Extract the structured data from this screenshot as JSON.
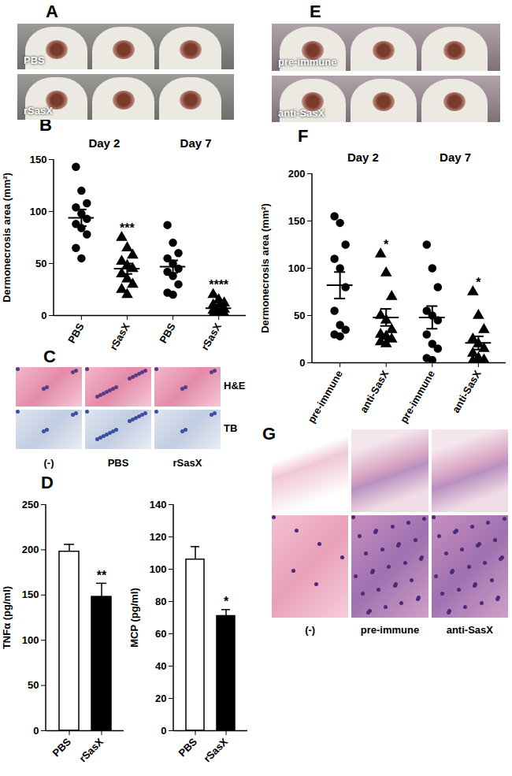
{
  "chart_data": [
    {
      "type": "scatter",
      "panel": "B",
      "ylabel": "Dermonecrosis area (mm²)",
      "ylim": [
        0,
        150
      ],
      "yticks": [
        0,
        50,
        100,
        150
      ],
      "groups": [
        "Day 2",
        "Day 7"
      ],
      "series": [
        {
          "name": "PBS",
          "marker": "circle",
          "color": "#000000",
          "values": [
            [
              143,
              120,
              108,
              104,
              98,
              93,
              88,
              84,
              78,
              65,
              55
            ],
            [
              87,
              70,
              60,
              55,
              50,
              45,
              42,
              38,
              30,
              22,
              20
            ]
          ],
          "mean": [
            94,
            47
          ],
          "sem": [
            8,
            6
          ],
          "significance": [
            null,
            null
          ]
        },
        {
          "name": "rSasX",
          "marker": "triangle",
          "color": "#000000",
          "values": [
            [
              75,
              65,
              58,
              52,
              48,
              45,
              40,
              35,
              30,
              25,
              20
            ],
            [
              20,
              15,
              12,
              10,
              8,
              6,
              5,
              3,
              2,
              1,
              0
            ]
          ],
          "mean": [
            45,
            7
          ],
          "sem": [
            5,
            2
          ],
          "significance": [
            "***",
            "****"
          ]
        }
      ]
    },
    {
      "type": "bar",
      "panel": "D",
      "ylabel": "TNFα (pg/ml)",
      "categories": [
        "PBS",
        "rSasX"
      ],
      "values": [
        198,
        148
      ],
      "errors": [
        8,
        15
      ],
      "colors": [
        "#ffffff",
        "#000000"
      ],
      "significance": [
        null,
        "**"
      ],
      "ylim": [
        0,
        250
      ],
      "yticks": [
        0,
        50,
        100,
        150,
        200,
        250
      ]
    },
    {
      "type": "bar",
      "ylabel": "MCP (pg/ml)",
      "categories": [
        "PBS",
        "rSasX"
      ],
      "values": [
        106,
        71
      ],
      "errors": [
        8,
        4
      ],
      "colors": [
        "#ffffff",
        "#000000"
      ],
      "significance": [
        null,
        "*"
      ],
      "ylim": [
        0,
        140
      ],
      "yticks": [
        0,
        20,
        40,
        60,
        80,
        100,
        120,
        140
      ]
    },
    {
      "type": "scatter",
      "panel": "F",
      "ylabel": "Dermonecrosis area (mm²)",
      "ylim": [
        0,
        200
      ],
      "yticks": [
        0,
        50,
        100,
        150,
        200
      ],
      "groups": [
        "Day 2",
        "Day 7"
      ],
      "series": [
        {
          "name": "pre-immune",
          "marker": "circle",
          "color": "#000000",
          "values": [
            [
              155,
              148,
              125,
              110,
              100,
              80,
              55,
              40,
              35,
              30,
              28
            ],
            [
              125,
              100,
              80,
              55,
              50,
              45,
              30,
              20,
              15,
              5,
              3
            ]
          ],
          "mean": [
            82,
            48
          ],
          "sem": [
            14,
            12
          ],
          "significance": [
            null,
            null
          ]
        },
        {
          "name": "anti-SasX",
          "marker": "triangle",
          "color": "#000000",
          "values": [
            [
              115,
              95,
              70,
              50,
              45,
              35,
              30,
              28,
              25,
              22,
              20
            ],
            [
              75,
              50,
              35,
              25,
              20,
              15,
              10,
              5,
              3,
              2,
              0
            ]
          ],
          "mean": [
            48,
            21
          ],
          "sem": [
            9,
            7
          ],
          "significance": [
            "*",
            "*"
          ]
        }
      ]
    }
  ],
  "images": [
    {
      "type": "photo",
      "panel": "A",
      "labels": [
        "PBS",
        "rSasX"
      ]
    },
    {
      "type": "micrograph",
      "panel": "C",
      "row_labels": [
        "H&E",
        "TB"
      ],
      "column_labels": [
        "(-)",
        "PBS",
        "rSasX"
      ]
    },
    {
      "type": "photo",
      "panel": "E",
      "labels": [
        "pre-immune",
        "anti-SasX"
      ]
    },
    {
      "type": "micrograph",
      "panel": "G",
      "column_labels": [
        "(-)",
        "pre-immune",
        "anti-SasX"
      ]
    }
  ]
}
